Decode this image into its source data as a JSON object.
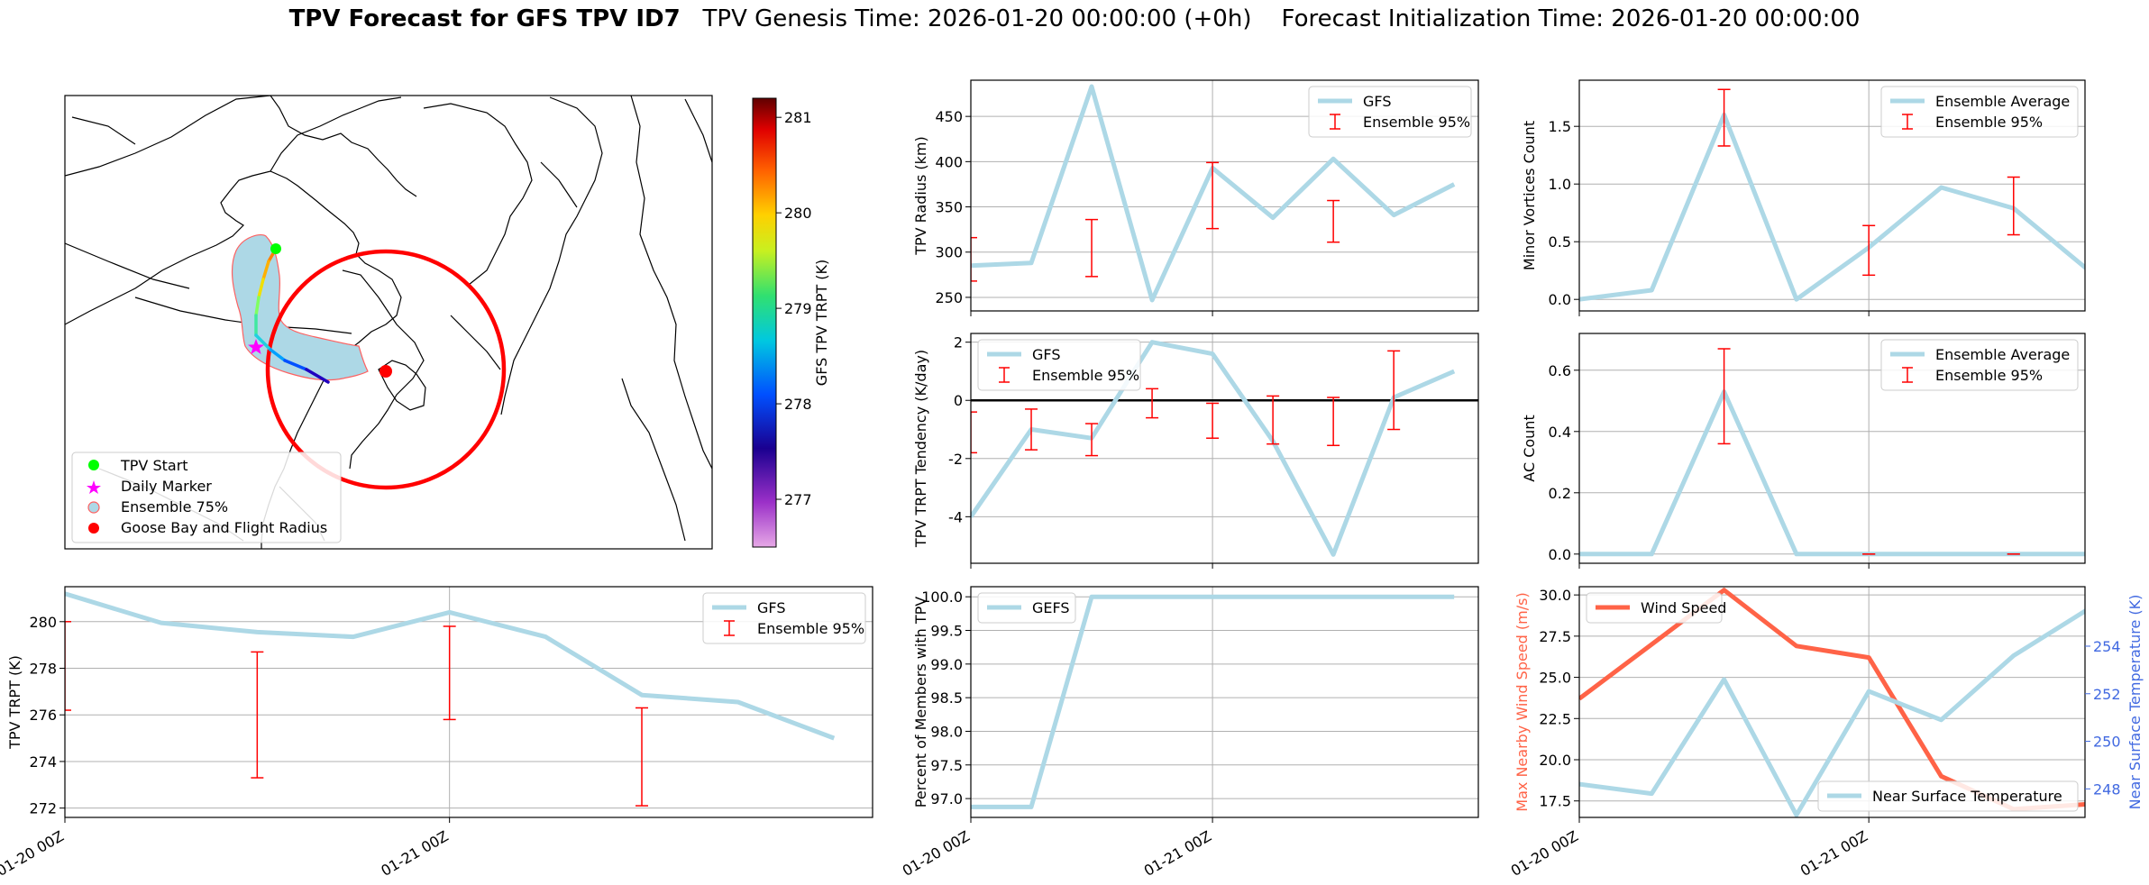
{
  "header": {
    "title_bold": "TPV Forecast for GFS TPV ID7",
    "genesis": "TPV Genesis Time: 2026-01-20 00:00:00 (+0h)",
    "init": "Forecast Initialization Time: 2026-01-20 00:00:00"
  },
  "colors": {
    "series": "#add8e6",
    "err": "#ff0000",
    "wind": "#ff6347",
    "temp_axis": "#4169e1",
    "grid": "#b0b0b0"
  },
  "map": {
    "legend": [
      "TPV Start",
      "Daily Marker",
      "Ensemble 75%",
      "Goose Bay and Flight Radius"
    ],
    "colorbar_label": "GFS TPV TRPT (K)",
    "colorbar_ticks": [
      277,
      278,
      279,
      280,
      281
    ],
    "colorbar_range": [
      276.5,
      281.2
    ]
  },
  "chart_data": [
    {
      "id": "radius",
      "type": "line",
      "ylabel": "TPV Radius (km)",
      "ylim": [
        235,
        490
      ],
      "yticks": [
        250,
        300,
        350,
        400,
        450
      ],
      "xlim": [
        0,
        3.15
      ],
      "xticks": [],
      "xgrid": [
        1.5
      ],
      "legend": [
        "GFS",
        "Ensemble 95%"
      ],
      "legend_pos": "top-right",
      "series": [
        {
          "name": "GFS",
          "x": [
            0,
            0.375,
            0.75,
            1.125,
            1.5,
            1.875,
            2.25,
            2.625,
            3.0
          ],
          "values": [
            285,
            288,
            483,
            247,
            393,
            338,
            403,
            341,
            375
          ]
        }
      ],
      "errorbars": [
        {
          "x": 0,
          "low": 268,
          "high": 316
        },
        {
          "x": 0.75,
          "low": 273,
          "high": 336
        },
        {
          "x": 1.5,
          "low": 326,
          "high": 399
        },
        {
          "x": 2.25,
          "low": 311,
          "high": 357
        }
      ]
    },
    {
      "id": "tendency",
      "type": "line",
      "ylabel": "TPV TRPT Tendency (K/day)",
      "ylim": [
        -5.6,
        2.3
      ],
      "yticks": [
        -4,
        -2,
        0,
        2
      ],
      "xlim": [
        0,
        3.15
      ],
      "xticks": [],
      "xgrid": [
        1.5
      ],
      "zeroline": true,
      "legend": [
        "GFS",
        "Ensemble 95%"
      ],
      "legend_pos": "top-left",
      "series": [
        {
          "name": "GFS",
          "x": [
            0,
            0.375,
            0.75,
            1.125,
            1.5,
            1.875,
            2.25,
            2.625,
            3.0
          ],
          "values": [
            -4.0,
            -1.0,
            -1.3,
            2.0,
            1.6,
            -1.4,
            -5.3,
            0.1,
            1.0
          ]
        }
      ],
      "errorbars": [
        {
          "x": 0,
          "low": -1.8,
          "high": -0.4
        },
        {
          "x": 0.375,
          "low": -1.7,
          "high": -0.3
        },
        {
          "x": 0.75,
          "low": -1.9,
          "high": -0.8
        },
        {
          "x": 1.125,
          "low": -0.6,
          "high": 0.4
        },
        {
          "x": 1.5,
          "low": -1.3,
          "high": -0.1
        },
        {
          "x": 1.875,
          "low": -1.5,
          "high": 0.15
        },
        {
          "x": 2.25,
          "low": -1.55,
          "high": 0.1
        },
        {
          "x": 2.625,
          "low": -1.0,
          "high": 1.7
        }
      ]
    },
    {
      "id": "percent",
      "type": "line",
      "ylabel": "Percent of Members with TPV",
      "ylim": [
        96.72,
        100.15
      ],
      "yticks": [
        97.0,
        97.5,
        98.0,
        98.5,
        99.0,
        99.5,
        100.0
      ],
      "xlim": [
        0,
        3.15
      ],
      "xticks": [
        0,
        1.5
      ],
      "xticklabels": [
        "01-20 00Z",
        "01-21 00Z"
      ],
      "xgrid": [
        1.5
      ],
      "legend": [
        "GEFS"
      ],
      "legend_pos": "top-left",
      "series": [
        {
          "name": "GEFS",
          "x": [
            0,
            0.375,
            0.75,
            1.125,
            1.5,
            1.875,
            2.25,
            2.625,
            3.0
          ],
          "values": [
            96.875,
            96.875,
            100,
            100,
            100,
            100,
            100,
            100,
            100
          ]
        }
      ],
      "errorbars": []
    },
    {
      "id": "minor",
      "type": "line",
      "ylabel": "Minor Vortices Count",
      "ylim": [
        -0.1,
        1.9
      ],
      "yticks": [
        0.0,
        0.5,
        1.0,
        1.5
      ],
      "xlim": [
        0,
        2.62
      ],
      "xticks": [],
      "xgrid": [
        1.5
      ],
      "legend": [
        "Ensemble Average",
        "Ensemble 95%"
      ],
      "legend_pos": "top-right",
      "series": [
        {
          "name": "Ensemble Average",
          "x": [
            0,
            0.375,
            0.75,
            1.125,
            1.5,
            1.875,
            2.25,
            2.625
          ],
          "values": [
            0.0,
            0.08,
            1.6,
            0.0,
            0.45,
            0.97,
            0.79,
            0.27
          ]
        }
      ],
      "errorbars": [
        {
          "x": 0.75,
          "low": 1.33,
          "high": 1.82
        },
        {
          "x": 1.5,
          "low": 0.21,
          "high": 0.64
        },
        {
          "x": 2.25,
          "low": 0.56,
          "high": 1.06
        }
      ]
    },
    {
      "id": "ac",
      "type": "line",
      "ylabel": "AC Count",
      "ylim": [
        -0.03,
        0.72
      ],
      "yticks": [
        0.0,
        0.2,
        0.4,
        0.6
      ],
      "xlim": [
        0,
        2.62
      ],
      "xticks": [],
      "xgrid": [
        1.5
      ],
      "legend": [
        "Ensemble Average",
        "Ensemble 95%"
      ],
      "legend_pos": "top-right",
      "series": [
        {
          "name": "Ensemble Average",
          "x": [
            0,
            0.375,
            0.75,
            1.125,
            1.5,
            1.875,
            2.25,
            2.625
          ],
          "values": [
            0.0,
            0.0,
            0.53,
            0.0,
            0.0,
            0.0,
            0.0,
            0.0
          ]
        }
      ],
      "errorbars": [
        {
          "x": 0.75,
          "low": 0.36,
          "high": 0.67
        },
        {
          "x": 1.5,
          "low": 0.0,
          "high": 0.0
        },
        {
          "x": 2.25,
          "low": 0.0,
          "high": 0.0
        }
      ]
    },
    {
      "id": "trpt",
      "type": "line",
      "ylabel": "TPV TRPT (K)",
      "ylim": [
        271.6,
        281.5
      ],
      "yticks": [
        272,
        274,
        276,
        278,
        280
      ],
      "xlim": [
        0,
        3.15
      ],
      "xticks": [
        0,
        1.5
      ],
      "xticklabels": [
        "01-20 00Z",
        "01-21 00Z"
      ],
      "xgrid": [
        1.5
      ],
      "legend": [
        "GFS",
        "Ensemble 95%"
      ],
      "legend_pos": "top-right",
      "series": [
        {
          "name": "GFS",
          "x": [
            0,
            0.375,
            0.75,
            1.125,
            1.5,
            1.875,
            2.25,
            2.625,
            3.0
          ],
          "values": [
            281.2,
            279.95,
            279.55,
            279.35,
            280.4,
            279.35,
            276.85,
            276.55,
            275.0
          ]
        }
      ],
      "errorbars": [
        {
          "x": 0,
          "low": 276.2,
          "high": 280.0
        },
        {
          "x": 0.75,
          "low": 273.3,
          "high": 278.7
        },
        {
          "x": 1.5,
          "low": 275.8,
          "high": 279.8
        },
        {
          "x": 2.25,
          "low": 272.1,
          "high": 276.3
        }
      ]
    },
    {
      "id": "wind",
      "type": "line",
      "ylabel": "Max Nearby Wind Speed (m/s)",
      "ylim": [
        16.5,
        30.5
      ],
      "yticks": [
        17.5,
        20.0,
        22.5,
        25.0,
        27.5,
        30.0
      ],
      "y2label": "Near Surface Temperature (K)",
      "y2lim": [
        246.8,
        256.5
      ],
      "y2ticks": [
        248,
        250,
        252,
        254
      ],
      "xlim": [
        0,
        2.62
      ],
      "xticks": [
        0,
        1.5
      ],
      "xticklabels": [
        "01-20 00Z",
        "01-21 00Z"
      ],
      "xgrid": [
        1.5
      ],
      "legend": [
        "Wind Speed"
      ],
      "legend2": [
        "Near Surface Temperature"
      ],
      "series": [
        {
          "name": "Wind Speed",
          "axis": "left",
          "x": [
            0,
            0.375,
            0.75,
            1.125,
            1.5,
            1.875,
            2.25,
            2.625
          ],
          "values": [
            23.7,
            27.0,
            30.3,
            26.9,
            26.2,
            19.0,
            17.0,
            17.3
          ]
        },
        {
          "name": "Near Surface Temperature",
          "axis": "right",
          "x": [
            0,
            0.375,
            0.75,
            1.125,
            1.5,
            1.875,
            2.25,
            2.625
          ],
          "values": [
            248.2,
            247.8,
            252.6,
            246.9,
            252.1,
            250.9,
            253.6,
            255.5
          ]
        }
      ]
    }
  ]
}
